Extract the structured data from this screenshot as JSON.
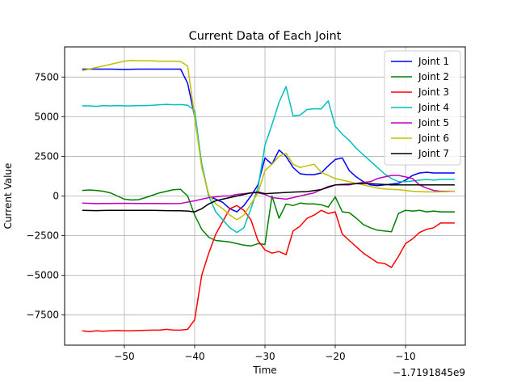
{
  "chart_data": {
    "type": "line",
    "title": "Current Data of Each Joint",
    "xlabel": "Time",
    "ylabel": "Current Value",
    "x_offset_label": "−1.7191845e9",
    "xlim": [
      -58.5,
      -1.5
    ],
    "ylim": [
      -9400,
      9400
    ],
    "xticks": [
      -50,
      -40,
      -30,
      -20,
      -10
    ],
    "xtick_labels": [
      "−50",
      "−40",
      "−30",
      "−20",
      "−10"
    ],
    "yticks": [
      -7500,
      -5000,
      -2500,
      0,
      2500,
      5000,
      7500
    ],
    "ytick_labels": [
      "−7500",
      "−5000",
      "−2500",
      "0",
      "2500",
      "5000",
      "7500"
    ],
    "grid": true,
    "legend_position": "top-right",
    "series": [
      {
        "name": "Joint 1",
        "color": "#0000ff",
        "x": [
          -56,
          -54,
          -52,
          -50,
          -48,
          -46,
          -44,
          -42,
          -41,
          -40,
          -39,
          -38,
          -37,
          -36,
          -35,
          -34,
          -33,
          -32,
          -31,
          -30,
          -29,
          -28,
          -27,
          -26,
          -25,
          -24,
          -23,
          -22,
          -21,
          -20,
          -19,
          -18,
          -17,
          -16,
          -15,
          -14,
          -13,
          -12,
          -11,
          -10,
          -9,
          -8,
          -7,
          -6,
          -5,
          -4,
          -3
        ],
        "y": [
          8000,
          8000,
          8000,
          7980,
          8000,
          8000,
          8000,
          8000,
          7100,
          5000,
          2000,
          0,
          -200,
          -400,
          -800,
          -1000,
          -600,
          0,
          700,
          2400,
          2000,
          2900,
          2500,
          1800,
          1400,
          1350,
          1350,
          1450,
          1900,
          2300,
          2400,
          1600,
          1200,
          900,
          700,
          650,
          700,
          750,
          800,
          1000,
          1300,
          1450,
          1500,
          1450,
          1450,
          1450,
          1450
        ]
      },
      {
        "name": "Joint 2",
        "color": "#008000",
        "x": [
          -56,
          -55,
          -54,
          -53,
          -52,
          -51,
          -50,
          -49,
          -48,
          -47,
          -46,
          -45,
          -44,
          -43,
          -42,
          -41,
          -40,
          -39,
          -38,
          -37,
          -36,
          -35,
          -34,
          -33,
          -32,
          -31,
          -30,
          -29,
          -28,
          -27,
          -26,
          -25,
          -24,
          -23,
          -22,
          -21,
          -20,
          -19,
          -18,
          -17,
          -16,
          -15,
          -14,
          -13,
          -12,
          -11,
          -10,
          -9,
          -8,
          -7,
          -6,
          -5,
          -4,
          -3
        ],
        "y": [
          350,
          380,
          350,
          300,
          200,
          0,
          -200,
          -250,
          -230,
          -100,
          50,
          200,
          300,
          400,
          420,
          0,
          -1200,
          -2100,
          -2600,
          -2800,
          -2850,
          -2900,
          -3000,
          -3100,
          -3150,
          -3000,
          -3050,
          0,
          -1400,
          -500,
          -600,
          -450,
          -500,
          -500,
          -550,
          -700,
          -50,
          -1000,
          -1050,
          -1400,
          -1800,
          -2000,
          -2150,
          -2200,
          -2250,
          -1100,
          -900,
          -950,
          -900,
          -1000,
          -950,
          -1000,
          -1000,
          -1000
        ]
      },
      {
        "name": "Joint 3",
        "color": "#ff0000",
        "x": [
          -56,
          -55,
          -54,
          -53,
          -52,
          -51,
          -50,
          -49,
          -48,
          -47,
          -46,
          -45,
          -44,
          -43,
          -42,
          -41,
          -40,
          -39,
          -38,
          -37,
          -36,
          -35,
          -34,
          -33,
          -32,
          -31,
          -30,
          -29,
          -28,
          -27,
          -26,
          -25,
          -24,
          -23,
          -22,
          -21,
          -20,
          -19,
          -18,
          -17,
          -16,
          -15,
          -14,
          -13,
          -12,
          -11,
          -10,
          -9,
          -8,
          -7,
          -6,
          -5,
          -4,
          -3
        ],
        "y": [
          -8500,
          -8550,
          -8500,
          -8520,
          -8500,
          -8480,
          -8500,
          -8500,
          -8480,
          -8460,
          -8450,
          -8450,
          -8400,
          -8450,
          -8450,
          -8400,
          -7800,
          -5000,
          -3600,
          -2400,
          -1600,
          -800,
          -600,
          -900,
          -1500,
          -2800,
          -3400,
          -3600,
          -3500,
          -3700,
          -2200,
          -1900,
          -1400,
          -1200,
          -900,
          -1100,
          -1000,
          -2400,
          -2800,
          -3200,
          -3600,
          -3900,
          -4200,
          -4250,
          -4500,
          -3800,
          -3000,
          -2700,
          -2300,
          -2100,
          -2000,
          -1700,
          -1700,
          -1700
        ]
      },
      {
        "name": "Joint 4",
        "color": "#00bfbf",
        "x": [
          -56,
          -55,
          -54,
          -53,
          -52,
          -51,
          -50,
          -49,
          -48,
          -47,
          -46,
          -45,
          -44,
          -43,
          -42,
          -41,
          -40,
          -39,
          -38,
          -37,
          -36,
          -35,
          -34,
          -33,
          -32,
          -31,
          -30,
          -29,
          -28,
          -27,
          -26,
          -25,
          -24,
          -23,
          -22,
          -21,
          -20,
          -19,
          -18,
          -17,
          -16,
          -15,
          -14,
          -13,
          -12,
          -11,
          -10,
          -9,
          -8,
          -7,
          -6,
          -5,
          -4,
          -3
        ],
        "y": [
          5680,
          5680,
          5650,
          5700,
          5680,
          5700,
          5680,
          5680,
          5700,
          5700,
          5720,
          5750,
          5780,
          5750,
          5760,
          5720,
          5400,
          2000,
          0,
          -1000,
          -1500,
          -2000,
          -2300,
          -2000,
          -800,
          500,
          3200,
          4500,
          5900,
          6900,
          5050,
          5100,
          5450,
          5500,
          5480,
          6000,
          4400,
          3900,
          3500,
          3000,
          2600,
          2200,
          1800,
          1400,
          1100,
          900,
          900,
          950,
          1000,
          1050,
          1000,
          1050,
          1050,
          1050
        ]
      },
      {
        "name": "Joint 5",
        "color": "#bf00bf",
        "x": [
          -56,
          -54,
          -52,
          -50,
          -48,
          -46,
          -44,
          -42,
          -40,
          -38,
          -37,
          -36,
          -35,
          -34,
          -33,
          -32,
          -31,
          -30,
          -29,
          -28,
          -27,
          -26,
          -25,
          -24,
          -23,
          -22,
          -21,
          -20,
          -19,
          -18,
          -17,
          -16,
          -15,
          -14,
          -13,
          -12,
          -11,
          -10,
          -9,
          -8,
          -7,
          -6,
          -5,
          -4,
          -3
        ],
        "y": [
          -450,
          -480,
          -470,
          -460,
          -470,
          -470,
          -480,
          -470,
          -300,
          -100,
          -50,
          0,
          0,
          100,
          150,
          200,
          200,
          100,
          -100,
          -150,
          -200,
          -100,
          0,
          100,
          200,
          400,
          600,
          700,
          700,
          700,
          800,
          850,
          900,
          1100,
          1200,
          1300,
          1300,
          1200,
          1100,
          700,
          500,
          350,
          300,
          300,
          300
        ]
      },
      {
        "name": "Joint 6",
        "color": "#bfbf00",
        "x": [
          -56,
          -55,
          -54,
          -53,
          -52,
          -51,
          -50,
          -49,
          -48,
          -47,
          -46,
          -45,
          -44,
          -43,
          -42,
          -41,
          -40,
          -39,
          -38,
          -37,
          -36,
          -35,
          -34,
          -33,
          -32,
          -31,
          -30,
          -29,
          -28,
          -27,
          -26,
          -25,
          -24,
          -23,
          -22,
          -21,
          -20,
          -19,
          -18,
          -17,
          -16,
          -15,
          -14,
          -13,
          -12,
          -11,
          -10,
          -9,
          -8,
          -7,
          -6,
          -5,
          -4,
          -3
        ],
        "y": [
          7900,
          8000,
          8100,
          8200,
          8300,
          8400,
          8500,
          8550,
          8530,
          8520,
          8520,
          8500,
          8500,
          8500,
          8480,
          8200,
          5000,
          1800,
          100,
          -500,
          -800,
          -1200,
          -1500,
          -1200,
          -500,
          200,
          1600,
          2000,
          2500,
          2700,
          2000,
          1800,
          1900,
          2000,
          1500,
          1300,
          1100,
          1000,
          900,
          800,
          700,
          600,
          500,
          450,
          420,
          400,
          350,
          300,
          280,
          260,
          260,
          270,
          280,
          300
        ]
      },
      {
        "name": "Joint 7",
        "color": "#000000",
        "x": [
          -56,
          -54,
          -52,
          -50,
          -48,
          -46,
          -44,
          -42,
          -41,
          -40,
          -39,
          -38,
          -37,
          -36,
          -34,
          -32,
          -31,
          -30,
          -28,
          -26,
          -24,
          -22,
          -20,
          -18,
          -16,
          -14,
          -12,
          -10,
          -8,
          -6,
          -4,
          -3
        ],
        "y": [
          -900,
          -920,
          -900,
          -900,
          -900,
          -900,
          -920,
          -930,
          -950,
          -1000,
          -800,
          -500,
          -300,
          -200,
          0,
          200,
          250,
          150,
          200,
          250,
          280,
          400,
          700,
          750,
          800,
          750,
          700,
          700,
          700,
          700,
          700,
          700
        ]
      }
    ]
  }
}
